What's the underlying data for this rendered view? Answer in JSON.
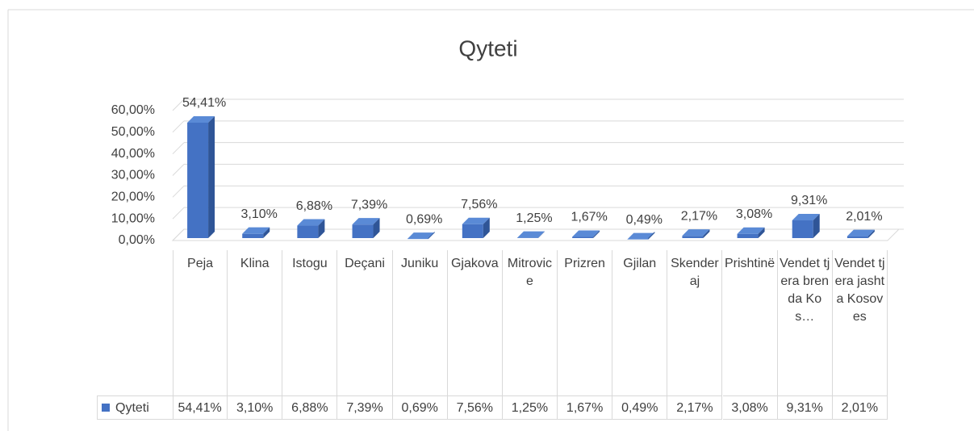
{
  "chart_data": {
    "type": "bar3d",
    "title": "Qyteti",
    "categories": [
      "Peja",
      "Klina",
      "Istogu",
      "Deçani",
      "Juniku",
      "Gjakova",
      "Mitrovice",
      "Prizren",
      "Gjilan",
      "Skenderaj",
      "Prishtinë",
      "Vendet tjera brenda Kos…",
      "Vendet tjera jashta Kosoves"
    ],
    "series": [
      {
        "name": "Qyteti",
        "color": "#4472c4",
        "values": [
          54.41,
          3.1,
          6.88,
          7.39,
          0.69,
          7.56,
          1.25,
          1.67,
          0.49,
          2.17,
          3.08,
          9.31,
          2.01
        ],
        "value_labels": [
          "54,41%",
          "3,10%",
          "6,88%",
          "7,39%",
          "0,69%",
          "7,56%",
          "1,25%",
          "1,67%",
          "0,49%",
          "2,17%",
          "3,08%",
          "9,31%",
          "2,01%"
        ]
      }
    ],
    "ylim": [
      0,
      60
    ],
    "yticks": [
      {
        "value": 0,
        "label": "0,00%"
      },
      {
        "value": 10,
        "label": "10,00%"
      },
      {
        "value": 20,
        "label": "20,00%"
      },
      {
        "value": 30,
        "label": "30,00%"
      },
      {
        "value": 40,
        "label": "40,00%"
      },
      {
        "value": 50,
        "label": "50,00%"
      },
      {
        "value": 60,
        "label": "60,00%"
      }
    ],
    "grid": true,
    "legend": "data-table"
  }
}
